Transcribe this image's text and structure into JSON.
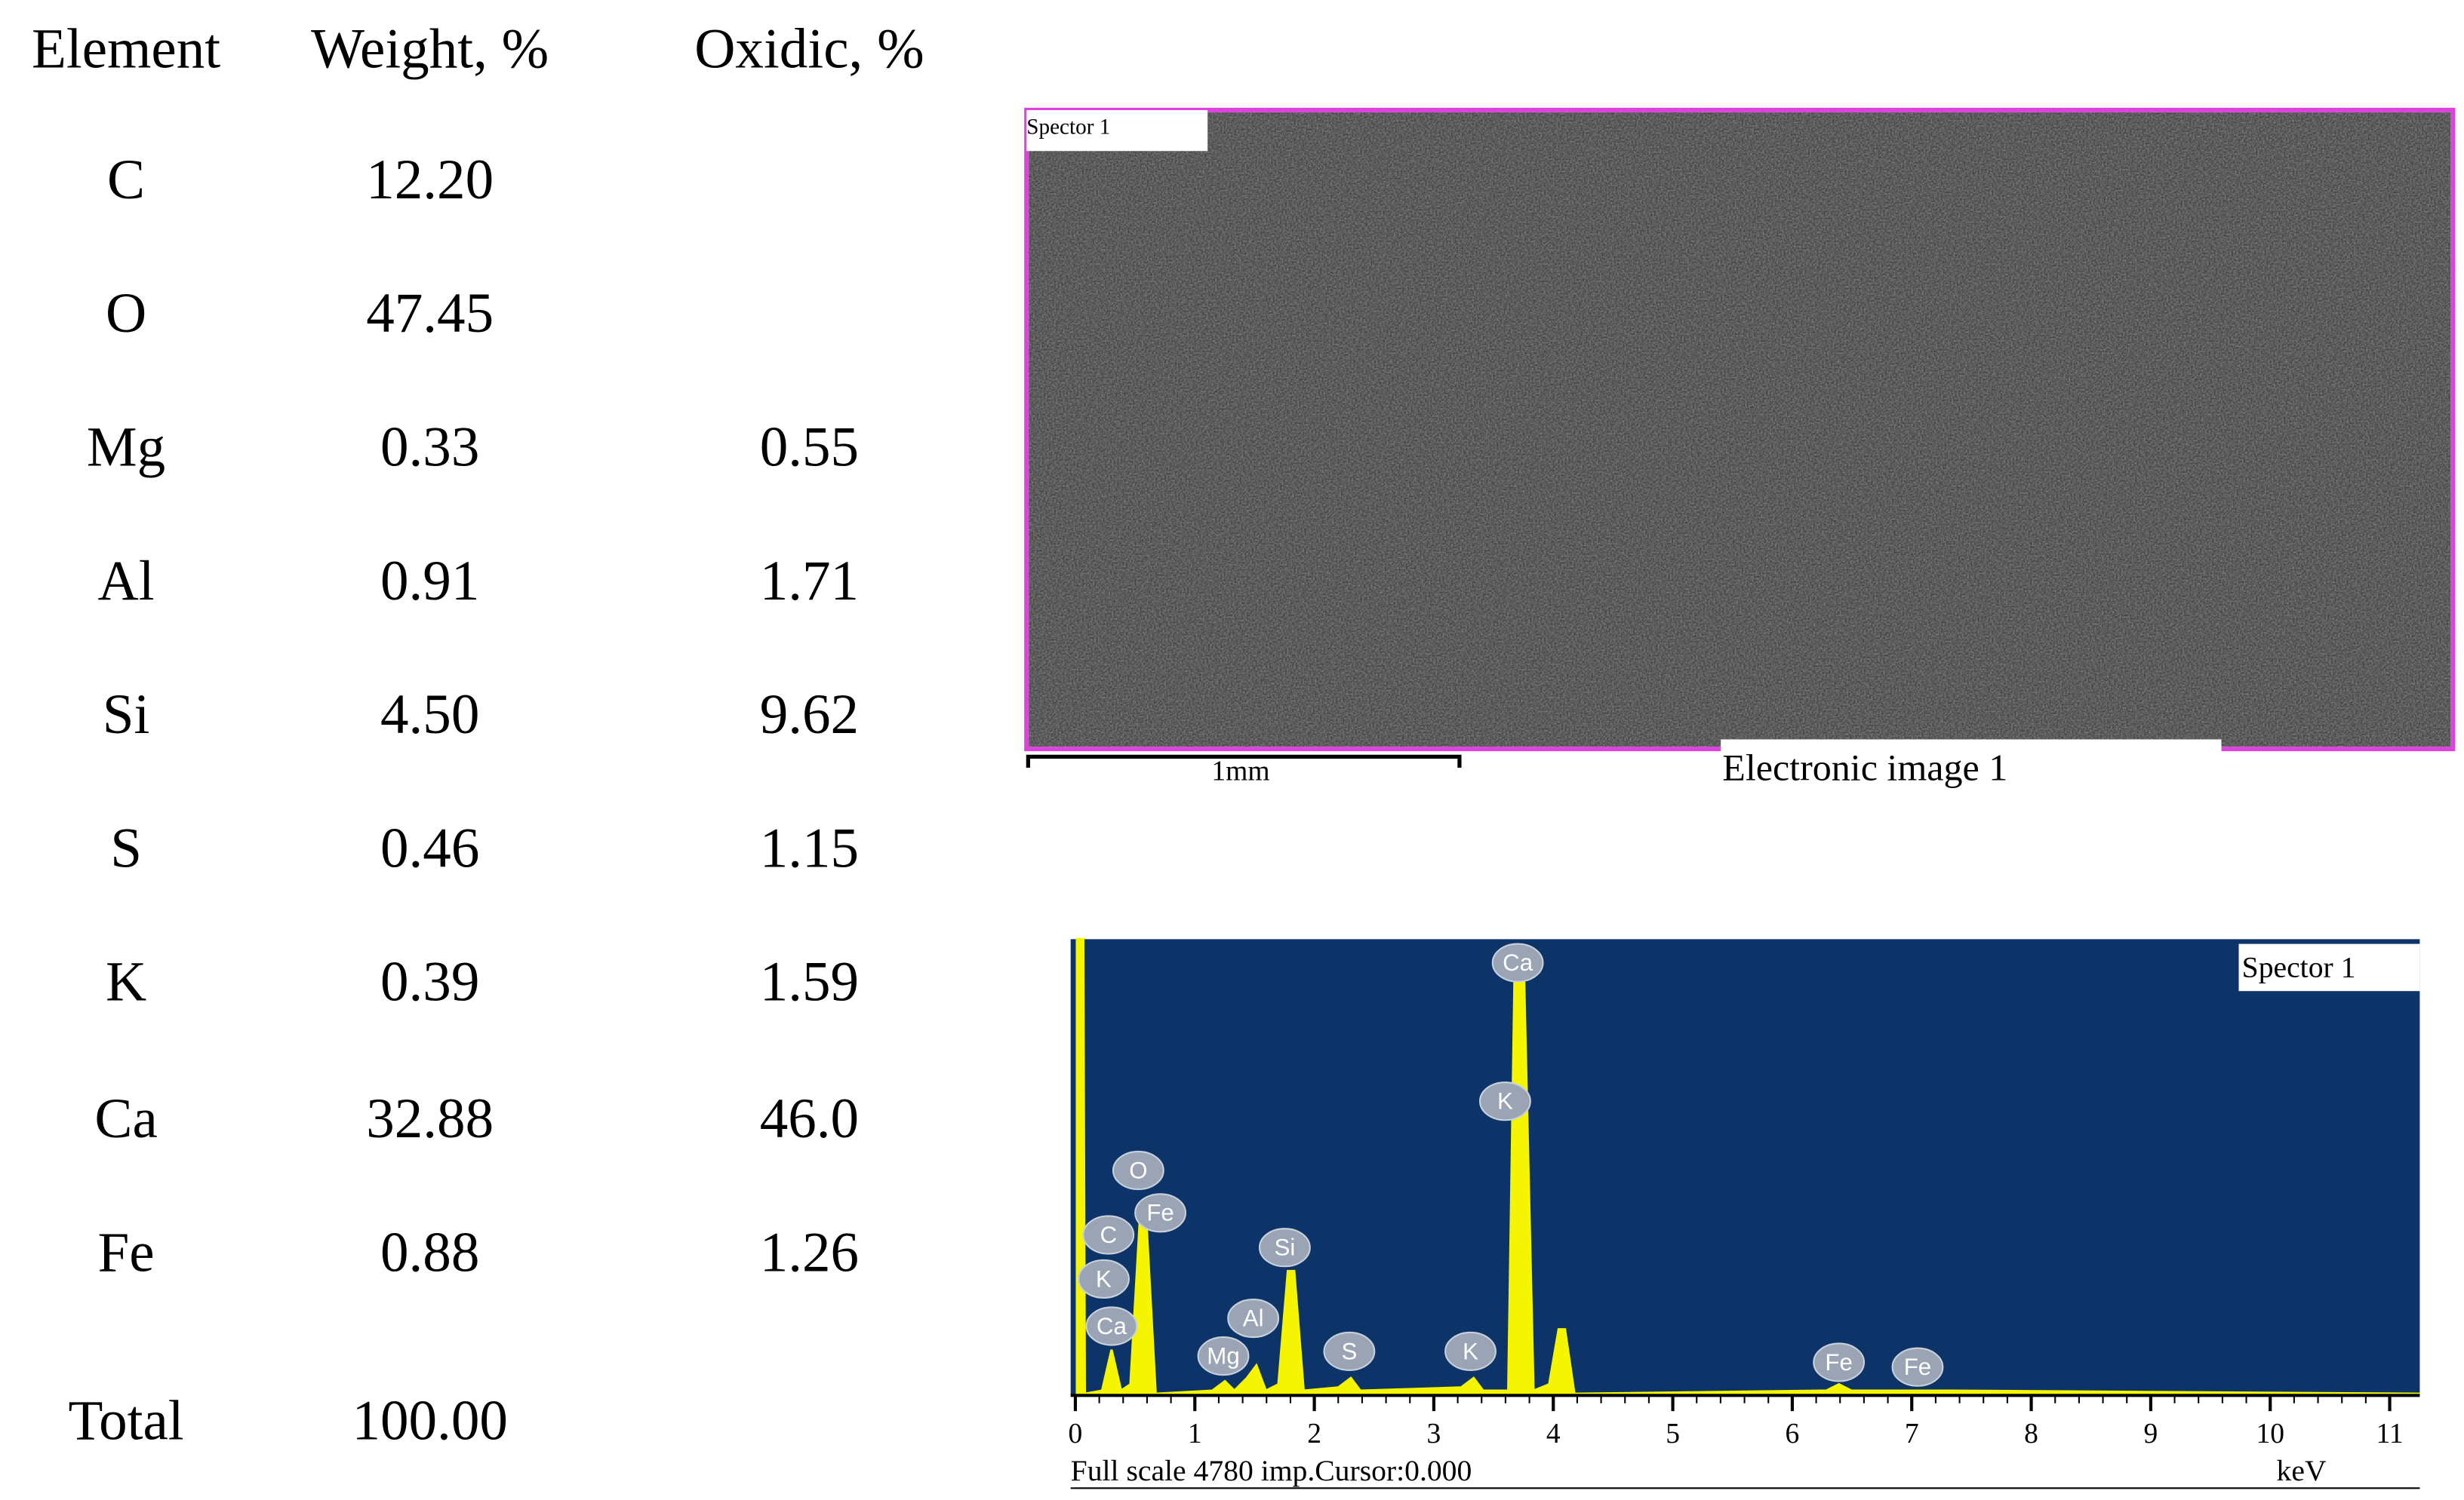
{
  "table": {
    "header": [
      "Element",
      "Weight, %",
      "Oxidic, %"
    ],
    "rows": [
      {
        "element": "C",
        "weight": "12.20"
      },
      {
        "element": "O",
        "weight": "47.45"
      },
      {
        "element": "Mg",
        "weight": "0.33",
        "oxidic": "0.55"
      },
      {
        "element": "Al",
        "weight": "0.91",
        "oxidic": "1.71"
      },
      {
        "element": "Si",
        "weight": "4.50",
        "oxidic": "9.62"
      },
      {
        "element": "S",
        "weight": "0.46",
        "oxidic": "1.15"
      },
      {
        "element": "K",
        "weight": "0.39",
        "oxidic": "1.59"
      },
      {
        "element": "Ca",
        "weight": "32.88",
        "oxidic": "46.0"
      },
      {
        "element": "Fe",
        "weight": "0.88",
        "oxidic": "1.26"
      },
      {
        "element": "Total",
        "weight": "100.00"
      }
    ]
  },
  "image": {
    "label": "Spector 1",
    "scale_bar": "1mm",
    "caption": "Electronic image 1"
  },
  "spectrum": {
    "label": "Spector 1",
    "peak_labels": [
      "Ca",
      "K",
      "O",
      "Fe",
      "C",
      "K",
      "Ca",
      "Si",
      "Al",
      "Mg",
      "S",
      "K",
      "Fe",
      "Fe"
    ],
    "x_ticks": [
      "0",
      "1",
      "2",
      "3",
      "4",
      "5",
      "6",
      "7",
      "8",
      "9",
      "10",
      "11"
    ],
    "footer": "Full scale 4780 imp.Cursor:0.000",
    "unit": "keV"
  }
}
